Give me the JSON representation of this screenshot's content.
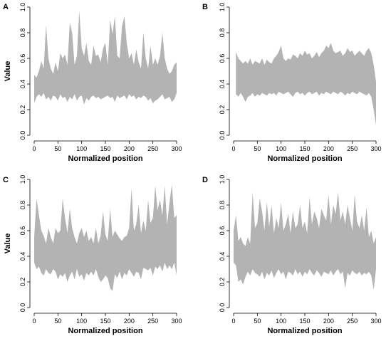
{
  "chart_data": [
    {
      "panel": "A",
      "type": "area",
      "xlabel": "Normalized position",
      "ylabel": "Value",
      "xlim": [
        0,
        300
      ],
      "ylim": [
        0,
        1
      ],
      "xticks": [
        "0",
        "50",
        "100",
        "150",
        "200",
        "250",
        "300"
      ],
      "yticks": [
        "0.0",
        "0.2",
        "0.4",
        "0.6",
        "0.8",
        "1.0"
      ],
      "x": [
        0,
        5,
        10,
        15,
        20,
        25,
        30,
        35,
        40,
        45,
        50,
        55,
        60,
        65,
        70,
        75,
        80,
        85,
        90,
        95,
        100,
        105,
        110,
        115,
        120,
        125,
        130,
        135,
        140,
        145,
        150,
        155,
        160,
        165,
        170,
        175,
        180,
        185,
        190,
        195,
        200,
        205,
        210,
        215,
        220,
        225,
        230,
        235,
        240,
        245,
        250,
        255,
        260,
        265,
        270,
        275,
        280,
        285,
        290,
        295,
        300
      ],
      "lower": [
        0.25,
        0.3,
        0.32,
        0.3,
        0.33,
        0.28,
        0.3,
        0.27,
        0.31,
        0.3,
        0.27,
        0.32,
        0.29,
        0.3,
        0.26,
        0.3,
        0.28,
        0.32,
        0.27,
        0.3,
        0.31,
        0.24,
        0.29,
        0.27,
        0.3,
        0.31,
        0.29,
        0.3,
        0.28,
        0.29,
        0.3,
        0.31,
        0.29,
        0.3,
        0.26,
        0.31,
        0.29,
        0.3,
        0.31,
        0.28,
        0.32,
        0.3,
        0.31,
        0.28,
        0.3,
        0.29,
        0.31,
        0.3,
        0.27,
        0.29,
        0.25,
        0.27,
        0.28,
        0.3,
        0.32,
        0.28,
        0.29,
        0.3,
        0.26,
        0.28,
        0.33
      ],
      "upper": [
        0.47,
        0.45,
        0.5,
        0.58,
        0.52,
        0.86,
        0.6,
        0.52,
        0.48,
        0.57,
        0.5,
        0.64,
        0.6,
        0.63,
        0.55,
        0.88,
        0.8,
        0.55,
        0.62,
        0.97,
        0.68,
        0.62,
        0.72,
        0.58,
        0.55,
        0.7,
        0.62,
        0.63,
        0.57,
        0.68,
        0.72,
        0.55,
        0.9,
        0.79,
        0.93,
        0.62,
        0.6,
        0.85,
        0.93,
        0.72,
        0.6,
        0.64,
        0.55,
        0.67,
        0.57,
        0.52,
        0.8,
        0.6,
        0.52,
        0.7,
        0.55,
        0.6,
        0.55,
        0.62,
        0.8,
        0.6,
        0.52,
        0.48,
        0.5,
        0.55,
        0.57
      ]
    },
    {
      "panel": "B",
      "type": "area",
      "xlabel": "Normalized position",
      "ylabel": "",
      "xlim": [
        0,
        300
      ],
      "ylim": [
        0,
        1
      ],
      "xticks": [
        "0",
        "50",
        "100",
        "150",
        "200",
        "250",
        "300"
      ],
      "yticks": [
        "0.0",
        "0.2",
        "0.4",
        "0.6",
        "0.8",
        "1.0"
      ],
      "x": [
        5,
        10,
        15,
        20,
        25,
        30,
        35,
        40,
        45,
        50,
        55,
        60,
        65,
        70,
        75,
        80,
        85,
        90,
        95,
        100,
        105,
        110,
        115,
        120,
        125,
        130,
        135,
        140,
        145,
        150,
        155,
        160,
        165,
        170,
        175,
        180,
        185,
        190,
        195,
        200,
        205,
        210,
        215,
        220,
        225,
        230,
        235,
        240,
        245,
        250,
        255,
        260,
        265,
        270,
        275,
        280,
        285,
        290,
        295,
        300
      ],
      "lower": [
        0.32,
        0.3,
        0.33,
        0.3,
        0.26,
        0.3,
        0.31,
        0.33,
        0.3,
        0.32,
        0.31,
        0.33,
        0.32,
        0.31,
        0.33,
        0.32,
        0.33,
        0.31,
        0.34,
        0.33,
        0.32,
        0.33,
        0.34,
        0.32,
        0.3,
        0.33,
        0.34,
        0.32,
        0.33,
        0.31,
        0.33,
        0.34,
        0.32,
        0.33,
        0.34,
        0.31,
        0.33,
        0.32,
        0.34,
        0.33,
        0.32,
        0.34,
        0.33,
        0.32,
        0.34,
        0.33,
        0.31,
        0.33,
        0.32,
        0.34,
        0.33,
        0.32,
        0.34,
        0.33,
        0.32,
        0.31,
        0.33,
        0.3,
        0.2,
        0.08
      ],
      "upper": [
        0.65,
        0.6,
        0.58,
        0.56,
        0.58,
        0.56,
        0.6,
        0.55,
        0.58,
        0.57,
        0.56,
        0.6,
        0.55,
        0.59,
        0.57,
        0.56,
        0.6,
        0.62,
        0.65,
        0.7,
        0.6,
        0.58,
        0.6,
        0.59,
        0.63,
        0.62,
        0.6,
        0.64,
        0.62,
        0.66,
        0.63,
        0.64,
        0.6,
        0.62,
        0.65,
        0.61,
        0.64,
        0.66,
        0.7,
        0.68,
        0.72,
        0.66,
        0.64,
        0.65,
        0.66,
        0.62,
        0.64,
        0.68,
        0.65,
        0.66,
        0.62,
        0.64,
        0.66,
        0.64,
        0.62,
        0.66,
        0.68,
        0.64,
        0.55,
        0.42
      ]
    },
    {
      "panel": "C",
      "type": "area",
      "xlabel": "Normalized position",
      "ylabel": "Value",
      "xlim": [
        0,
        300
      ],
      "ylim": [
        0,
        1
      ],
      "xticks": [
        "0",
        "50",
        "100",
        "150",
        "200",
        "250",
        "300"
      ],
      "yticks": [
        "0.0",
        "0.2",
        "0.4",
        "0.6",
        "0.8",
        "1.0"
      ],
      "x": [
        0,
        5,
        10,
        15,
        20,
        25,
        30,
        35,
        40,
        45,
        50,
        55,
        60,
        65,
        70,
        75,
        80,
        85,
        90,
        95,
        100,
        105,
        110,
        115,
        120,
        125,
        130,
        135,
        140,
        145,
        150,
        155,
        160,
        165,
        170,
        175,
        180,
        185,
        190,
        195,
        200,
        205,
        210,
        215,
        220,
        225,
        230,
        235,
        240,
        245,
        250,
        255,
        260,
        265,
        270,
        275,
        280,
        285,
        290,
        295,
        300
      ],
      "lower": [
        0.35,
        0.3,
        0.32,
        0.27,
        0.25,
        0.3,
        0.27,
        0.26,
        0.3,
        0.28,
        0.22,
        0.26,
        0.24,
        0.27,
        0.2,
        0.25,
        0.28,
        0.22,
        0.3,
        0.24,
        0.26,
        0.21,
        0.27,
        0.25,
        0.28,
        0.25,
        0.3,
        0.24,
        0.2,
        0.22,
        0.25,
        0.23,
        0.15,
        0.13,
        0.26,
        0.23,
        0.28,
        0.22,
        0.27,
        0.25,
        0.3,
        0.27,
        0.24,
        0.28,
        0.27,
        0.22,
        0.31,
        0.3,
        0.29,
        0.31,
        0.25,
        0.32,
        0.3,
        0.33,
        0.28,
        0.35,
        0.3,
        0.33,
        0.3,
        0.35,
        0.25
      ],
      "upper": [
        0.55,
        0.85,
        0.72,
        0.6,
        0.56,
        0.5,
        0.62,
        0.55,
        0.5,
        0.62,
        0.58,
        0.6,
        0.85,
        0.7,
        0.58,
        0.77,
        0.62,
        0.55,
        0.5,
        0.58,
        0.62,
        0.55,
        0.6,
        0.52,
        0.55,
        0.5,
        0.62,
        0.5,
        0.56,
        0.75,
        0.57,
        0.52,
        0.77,
        0.55,
        0.6,
        0.57,
        0.54,
        0.52,
        0.55,
        0.56,
        0.62,
        0.93,
        0.6,
        0.65,
        0.8,
        0.58,
        0.68,
        0.6,
        0.84,
        0.66,
        0.7,
        0.95,
        0.76,
        0.84,
        0.72,
        0.95,
        0.65,
        0.82,
        0.96,
        0.7,
        0.72
      ]
    },
    {
      "panel": "D",
      "type": "area",
      "xlabel": "Normalized position",
      "ylabel": "",
      "xlim": [
        0,
        300
      ],
      "ylim": [
        0,
        1
      ],
      "xticks": [
        "0",
        "50",
        "100",
        "150",
        "200",
        "250",
        "300"
      ],
      "yticks": [
        "0.0",
        "0.2",
        "0.4",
        "0.6",
        "0.8",
        "1.0"
      ],
      "x": [
        0,
        5,
        10,
        15,
        20,
        25,
        30,
        35,
        40,
        45,
        50,
        55,
        60,
        65,
        70,
        75,
        80,
        85,
        90,
        95,
        100,
        105,
        110,
        115,
        120,
        125,
        130,
        135,
        140,
        145,
        150,
        155,
        160,
        165,
        170,
        175,
        180,
        185,
        190,
        195,
        200,
        205,
        210,
        215,
        220,
        225,
        230,
        235,
        240,
        245,
        250,
        255,
        260,
        265,
        270,
        275,
        280,
        285,
        290,
        295,
        300
      ],
      "lower": [
        0.35,
        0.33,
        0.2,
        0.22,
        0.18,
        0.24,
        0.28,
        0.25,
        0.3,
        0.27,
        0.26,
        0.24,
        0.28,
        0.22,
        0.27,
        0.25,
        0.29,
        0.23,
        0.27,
        0.3,
        0.26,
        0.28,
        0.22,
        0.28,
        0.27,
        0.25,
        0.3,
        0.26,
        0.28,
        0.24,
        0.28,
        0.26,
        0.3,
        0.27,
        0.25,
        0.29,
        0.27,
        0.24,
        0.28,
        0.27,
        0.26,
        0.29,
        0.25,
        0.28,
        0.3,
        0.26,
        0.28,
        0.15,
        0.27,
        0.25,
        0.29,
        0.27,
        0.26,
        0.28,
        0.25,
        0.27,
        0.26,
        0.28,
        0.25,
        0.14,
        0.3
      ],
      "upper": [
        0.6,
        0.72,
        0.52,
        0.55,
        0.5,
        0.48,
        0.55,
        0.5,
        0.9,
        0.62,
        0.66,
        0.85,
        0.75,
        0.6,
        0.82,
        0.63,
        0.8,
        0.58,
        0.7,
        0.62,
        0.82,
        0.6,
        0.65,
        0.73,
        0.58,
        0.75,
        0.62,
        0.65,
        0.8,
        0.62,
        0.67,
        0.58,
        0.86,
        0.65,
        0.75,
        0.7,
        0.62,
        0.77,
        0.72,
        0.68,
        0.88,
        0.65,
        0.8,
        0.73,
        0.9,
        0.68,
        0.75,
        0.65,
        0.8,
        0.7,
        0.6,
        0.88,
        0.67,
        0.62,
        0.72,
        0.6,
        0.78,
        0.55,
        0.6,
        0.5,
        0.55
      ]
    }
  ]
}
